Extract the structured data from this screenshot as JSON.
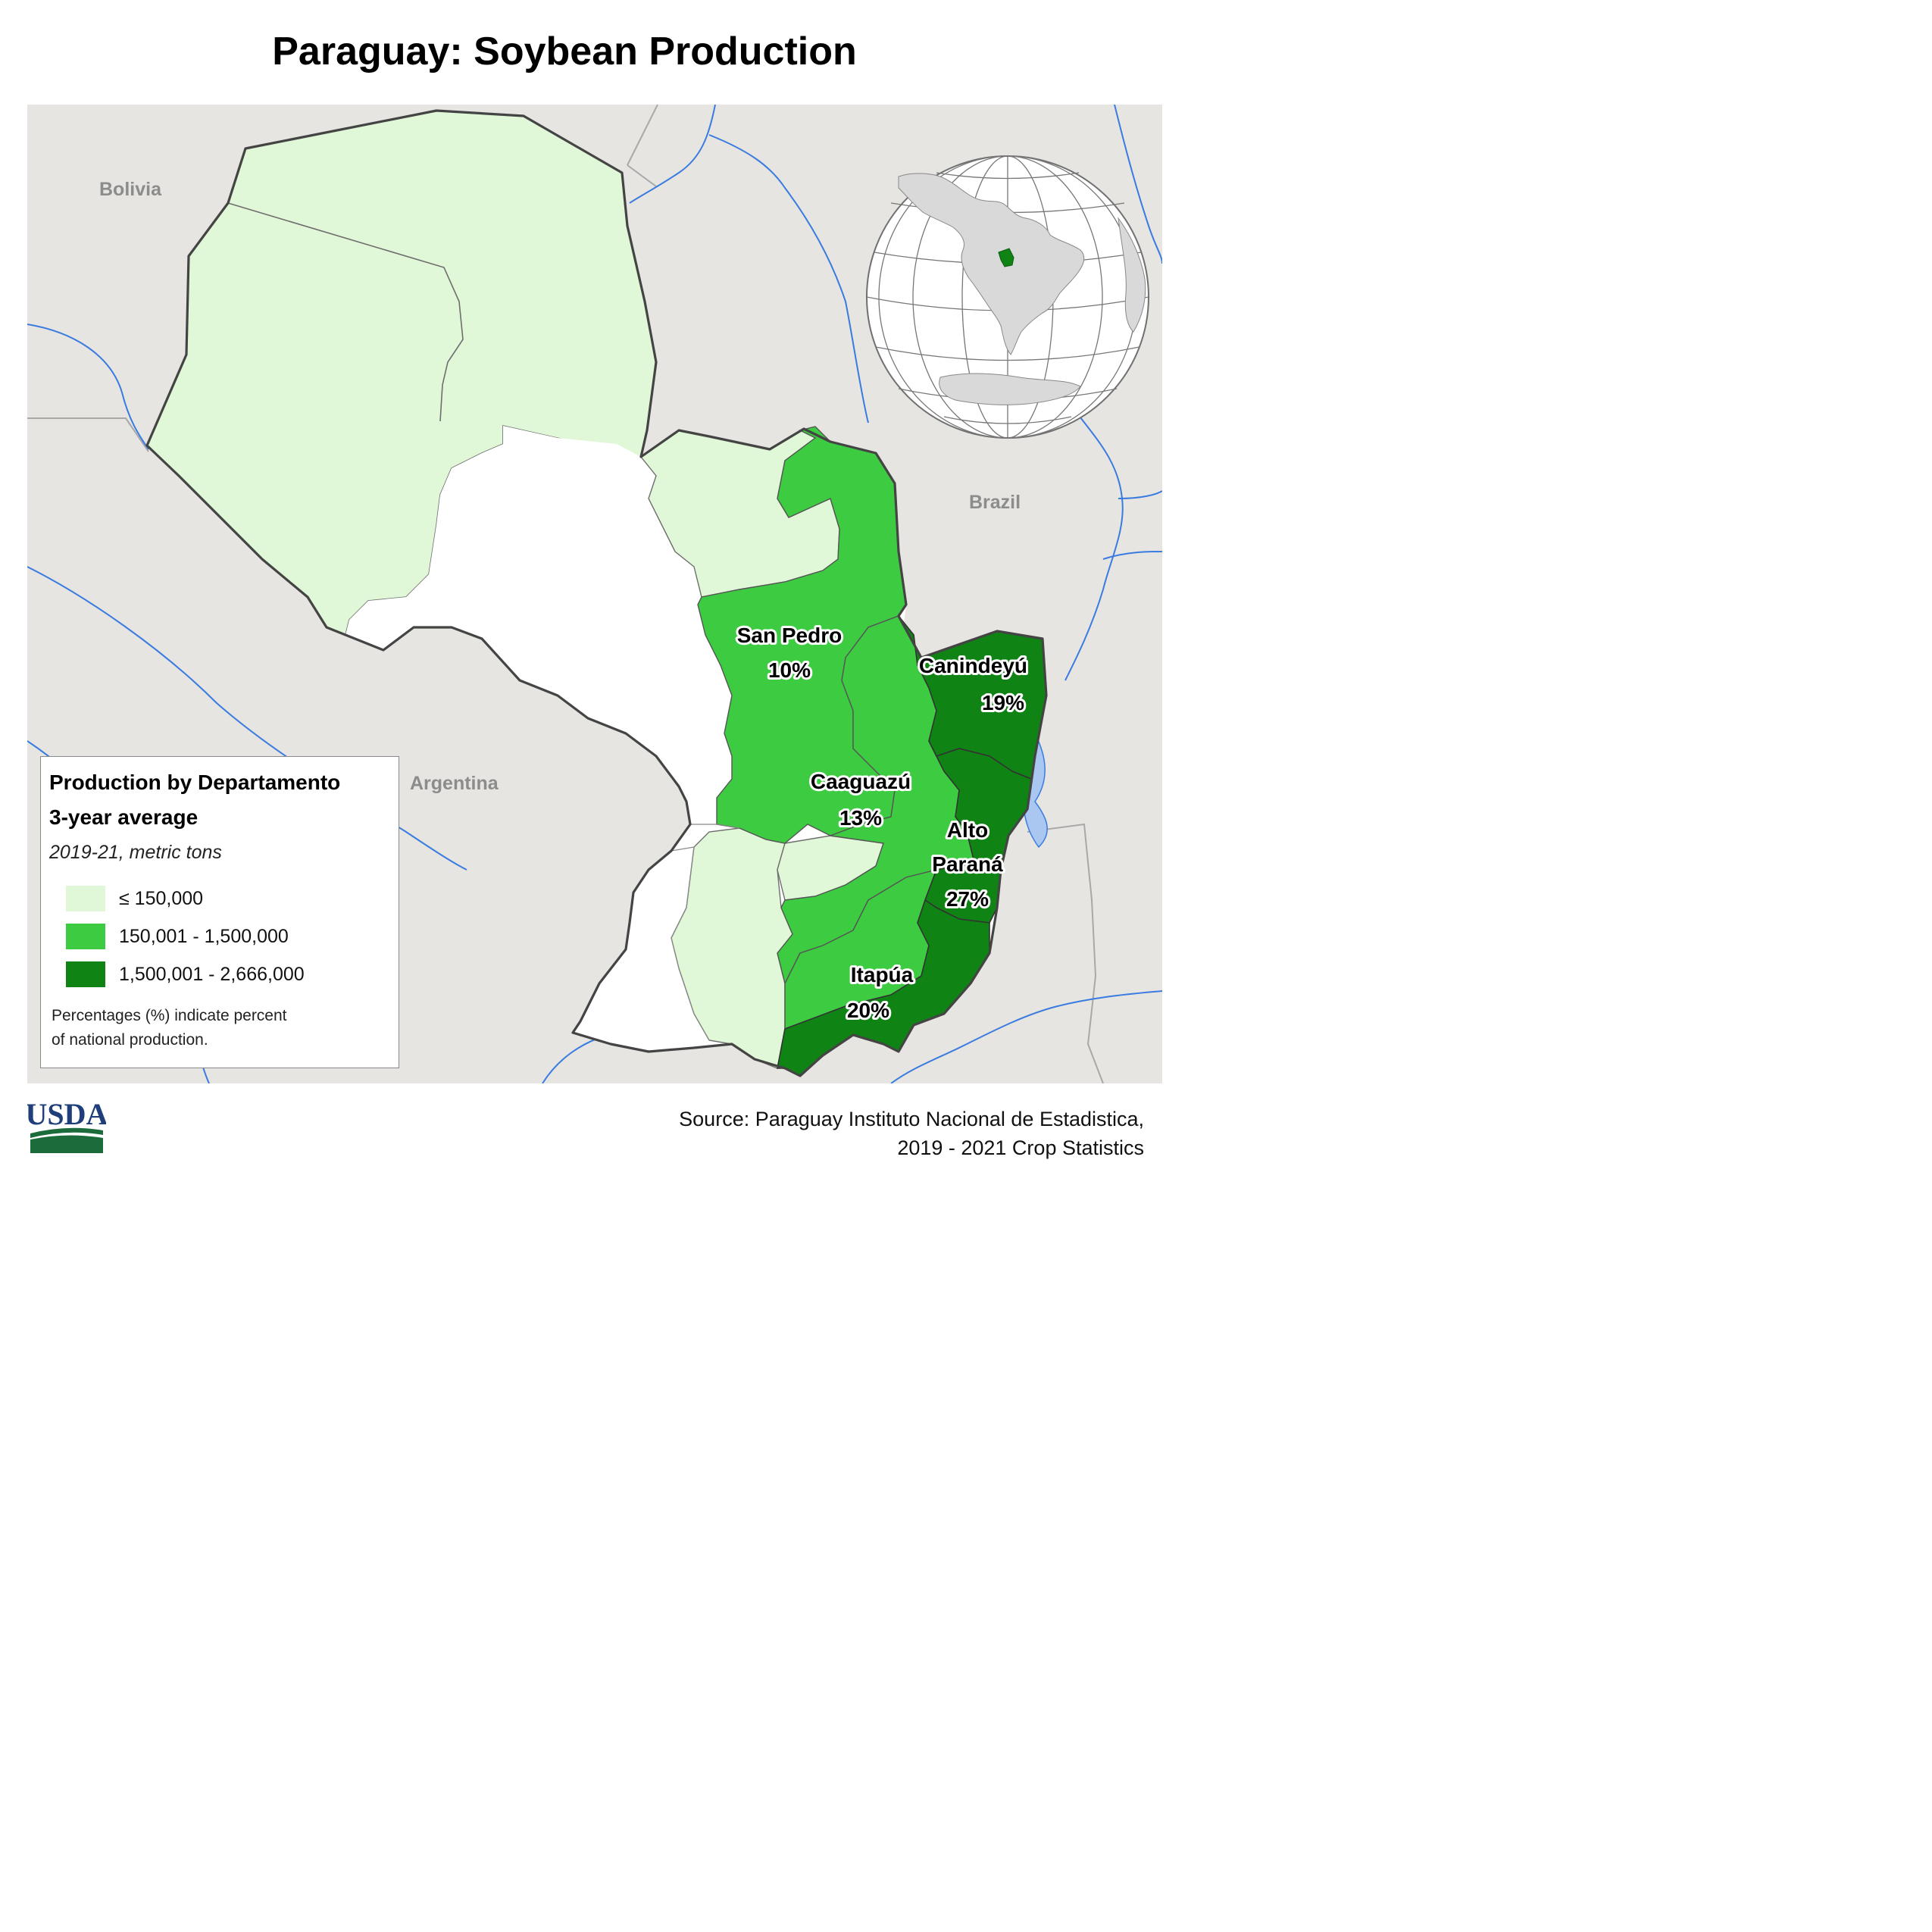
{
  "title": "Paraguay: Soybean Production",
  "colors": {
    "low": "#e0f8d7",
    "mid": "#3dcb41",
    "high": "#0f8414",
    "no_data": "#ffffff",
    "background": "#e6e5e1",
    "river": "#3a7be0"
  },
  "countries": {
    "bolivia": "Bolivia",
    "brazil": "Brazil",
    "argentina": "Argentina"
  },
  "departments": [
    {
      "name": "San Pedro",
      "percent": "10%",
      "class": "mid"
    },
    {
      "name": "Canindeyú",
      "percent": "19%",
      "class": "high"
    },
    {
      "name": "Caaguazú",
      "percent": "13%",
      "class": "mid"
    },
    {
      "name": "Alto",
      "name2": "Paraná",
      "percent": "27%",
      "class": "high"
    },
    {
      "name": "Itapúa",
      "percent": "20%",
      "class": "high"
    }
  ],
  "legend": {
    "title_line1": "Production by Departamento",
    "title_line2": "3-year average",
    "subtitle": "2019-21, metric tons",
    "items": [
      {
        "label": "≤ 150,000",
        "color": "#e0f8d7"
      },
      {
        "label": "150,001 - 1,500,000",
        "color": "#3dcb41"
      },
      {
        "label": "1,500,001 - 2,666,000",
        "color": "#0f8414"
      }
    ],
    "note_line1": "Percentages (%) indicate percent",
    "note_line2": "of national production."
  },
  "logo": {
    "text": "USDA"
  },
  "source": {
    "line1": "Source: Paraguay Instituto Nacional de Estadistica,",
    "line2": "2019 - 2021 Crop Statistics"
  }
}
